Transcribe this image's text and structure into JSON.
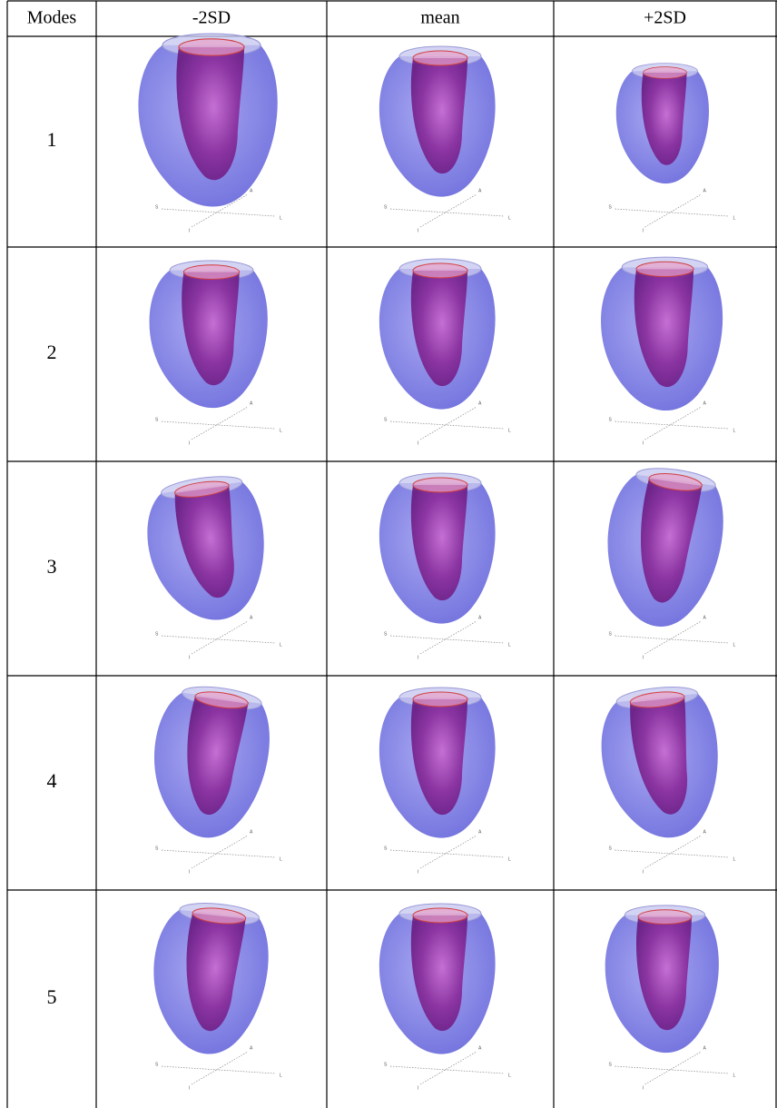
{
  "table": {
    "header": [
      "Modes",
      "-2SD",
      "mean",
      "+2SD"
    ],
    "rows": [
      [
        "1"
      ],
      [
        "2"
      ],
      [
        "3"
      ],
      [
        "4"
      ],
      [
        "5"
      ]
    ]
  },
  "axis_letters": {
    "s": "S",
    "a": "A",
    "l": "L",
    "i": "I"
  }
}
